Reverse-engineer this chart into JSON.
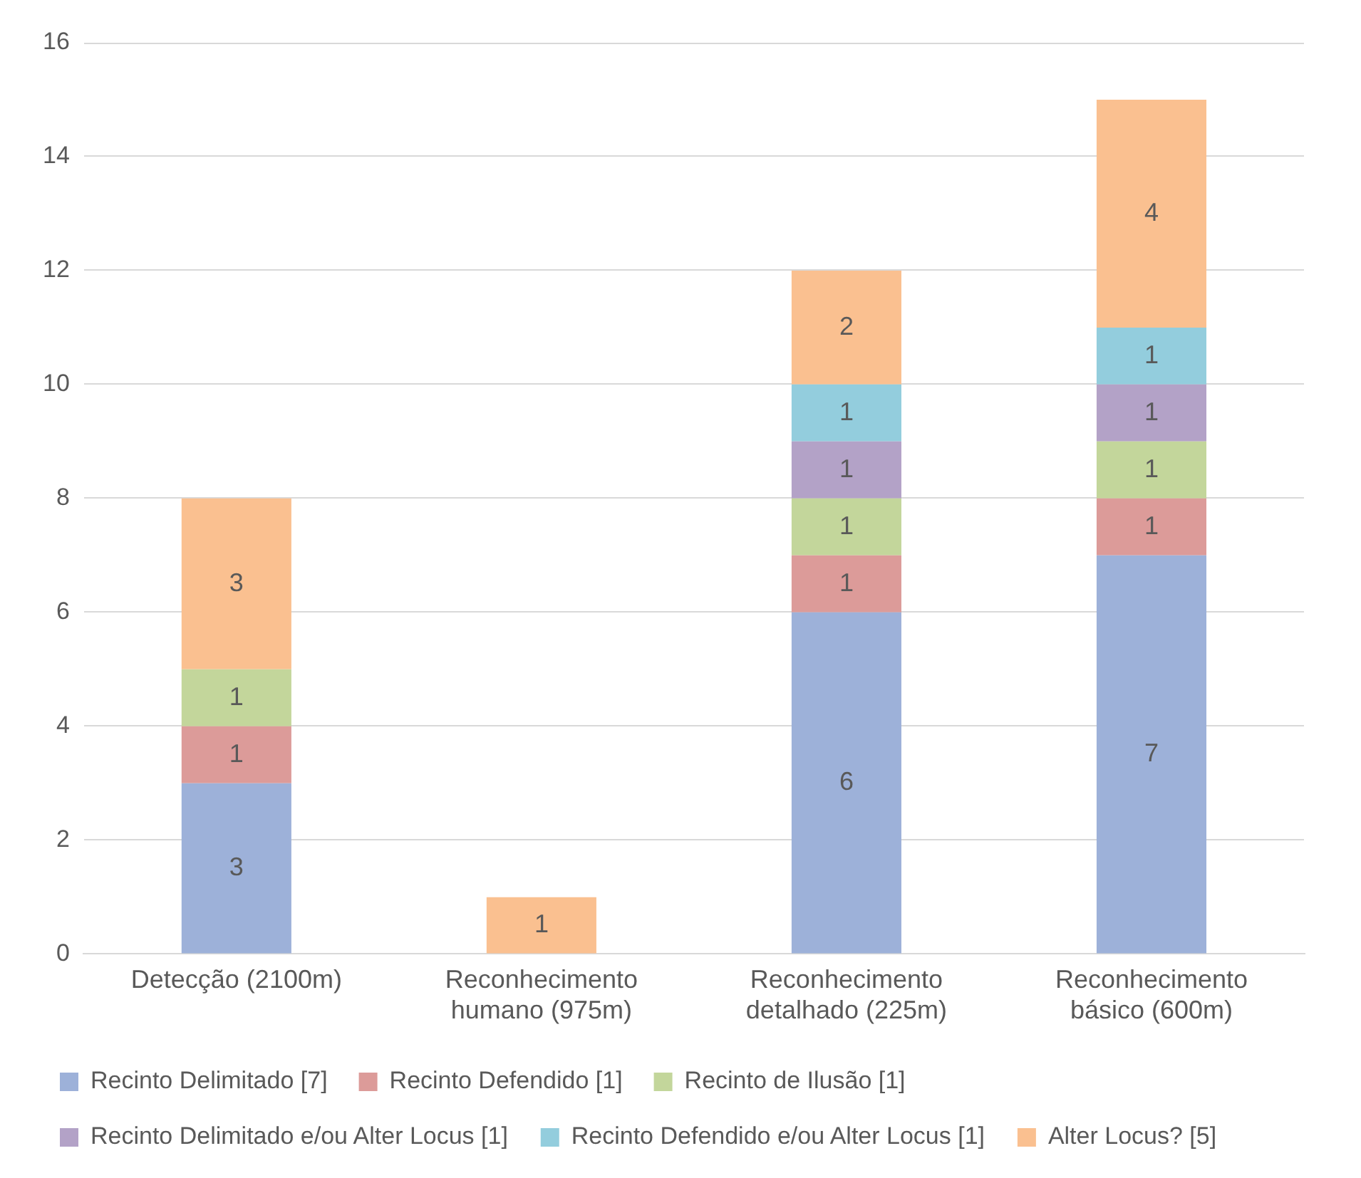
{
  "chart_data": {
    "type": "bar",
    "stacked": true,
    "categories": [
      "Detecção (2100m)",
      "Reconhecimento humano (975m)",
      "Reconhecimento detalhado (225m)",
      "Reconhecimento básico (600m)"
    ],
    "series": [
      {
        "name": "Recinto Delimitado [7]",
        "color": "#9db1d9",
        "values": [
          3,
          null,
          6,
          7
        ]
      },
      {
        "name": "Recinto Defendido [1]",
        "color": "#dc9b99",
        "values": [
          1,
          null,
          1,
          1
        ]
      },
      {
        "name": "Recinto de Ilusão [1]",
        "color": "#c3d69b",
        "values": [
          1,
          null,
          1,
          1
        ]
      },
      {
        "name": "Recinto Delimitado e/ou Alter Locus [1]",
        "color": "#b3a2c7",
        "values": [
          null,
          null,
          1,
          1
        ]
      },
      {
        "name": "Recinto Defendido e/ou Alter Locus [1]",
        "color": "#93cddd",
        "values": [
          null,
          null,
          1,
          1
        ]
      },
      {
        "name": "Alter Locus? [5]",
        "color": "#fac090",
        "values": [
          3,
          1,
          2,
          4
        ]
      }
    ],
    "ylim": [
      0,
      16
    ],
    "yticks": [
      0,
      2,
      4,
      6,
      8,
      10,
      12,
      14,
      16
    ],
    "grid": "y",
    "legend": "bottom",
    "data_labels": true
  }
}
